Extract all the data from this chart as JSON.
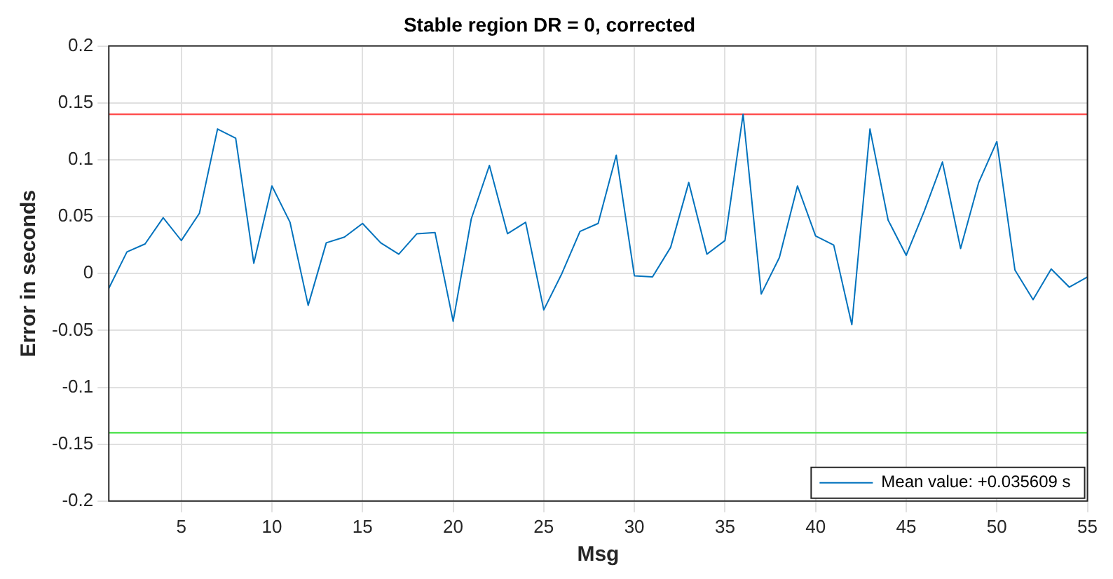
{
  "chart_data": {
    "type": "line",
    "title": "Stable region DR = 0, corrected",
    "xlabel": "Msg",
    "ylabel": "Error in seconds",
    "x": [
      1,
      2,
      3,
      4,
      5,
      6,
      7,
      8,
      9,
      10,
      11,
      12,
      13,
      14,
      15,
      16,
      17,
      18,
      19,
      20,
      21,
      22,
      23,
      24,
      25,
      26,
      27,
      28,
      29,
      30,
      31,
      32,
      33,
      34,
      35,
      36,
      37,
      38,
      39,
      40,
      41,
      42,
      43,
      44,
      45,
      46,
      47,
      48,
      49,
      50,
      51,
      52,
      53,
      54,
      55
    ],
    "series": [
      {
        "name": "Mean value: +0.035609 s",
        "color": "#0072bd",
        "values": [
          -0.013,
          0.019,
          0.026,
          0.049,
          0.029,
          0.053,
          0.127,
          0.119,
          0.009,
          0.077,
          0.045,
          -0.028,
          0.027,
          0.032,
          0.044,
          0.027,
          0.017,
          0.035,
          0.036,
          -0.042,
          0.048,
          0.095,
          0.035,
          0.045,
          -0.032,
          0.0,
          0.037,
          0.044,
          0.104,
          -0.002,
          -0.003,
          0.023,
          0.08,
          0.017,
          0.029,
          0.14,
          -0.018,
          0.014,
          0.077,
          0.033,
          0.025,
          -0.045,
          0.127,
          0.047,
          0.016,
          0.055,
          0.098,
          0.022,
          0.08,
          0.116,
          0.003,
          -0.023,
          0.004,
          -0.012,
          -0.003
        ]
      }
    ],
    "ref_lines": [
      {
        "axis": "y",
        "value": 0.14,
        "color": "#ff5050"
      },
      {
        "axis": "y",
        "value": -0.14,
        "color": "#40e040"
      }
    ],
    "xlim": [
      1,
      55
    ],
    "xticks": [
      5,
      10,
      15,
      20,
      25,
      30,
      35,
      40,
      45,
      50,
      55
    ],
    "ylim": [
      -0.2,
      0.2
    ],
    "yticks": [
      -0.2,
      -0.15,
      -0.1,
      -0.05,
      0,
      0.05,
      0.1,
      0.15,
      0.2
    ],
    "grid": true,
    "legend": "bottom right",
    "marker": "none",
    "line_style": "solid"
  }
}
